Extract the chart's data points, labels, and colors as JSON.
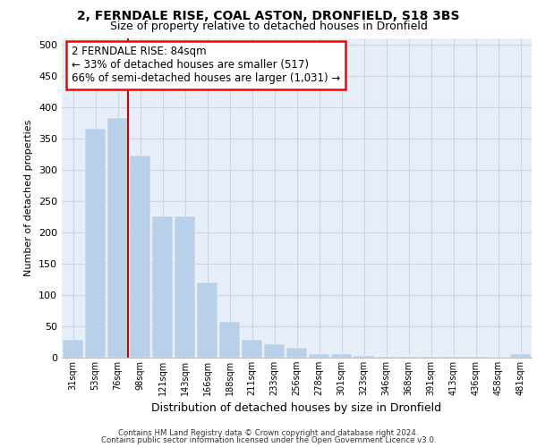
{
  "title1": "2, FERNDALE RISE, COAL ASTON, DRONFIELD, S18 3BS",
  "title2": "Size of property relative to detached houses in Dronfield",
  "xlabel": "Distribution of detached houses by size in Dronfield",
  "ylabel": "Number of detached properties",
  "categories": [
    "31sqm",
    "53sqm",
    "76sqm",
    "98sqm",
    "121sqm",
    "143sqm",
    "166sqm",
    "188sqm",
    "211sqm",
    "233sqm",
    "256sqm",
    "278sqm",
    "301sqm",
    "323sqm",
    "346sqm",
    "368sqm",
    "391sqm",
    "413sqm",
    "436sqm",
    "458sqm",
    "481sqm"
  ],
  "values": [
    28,
    365,
    383,
    323,
    225,
    225,
    120,
    57,
    29,
    22,
    15,
    6,
    5,
    3,
    2,
    2,
    2,
    1,
    1,
    0,
    5
  ],
  "bar_color": "#b8d0ea",
  "bar_edge_color": "#b8d0ea",
  "grid_color": "#c8d4e8",
  "background_color": "#e8eef8",
  "marker_color": "#cc0000",
  "annotation_text": "2 FERNDALE RISE: 84sqm\n← 33% of detached houses are smaller (517)\n66% of semi-detached houses are larger (1,031) →",
  "footer1": "Contains HM Land Registry data © Crown copyright and database right 2024.",
  "footer2": "Contains public sector information licensed under the Open Government Licence v3.0.",
  "ylim": [
    0,
    510
  ],
  "yticks": [
    0,
    50,
    100,
    150,
    200,
    250,
    300,
    350,
    400,
    450,
    500
  ]
}
